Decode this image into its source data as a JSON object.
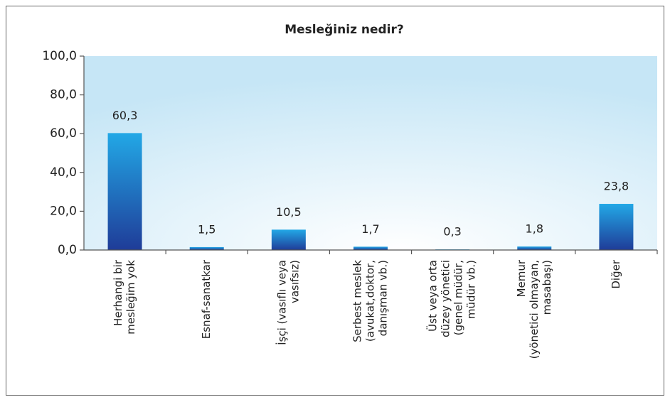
{
  "chart_data": {
    "type": "bar",
    "title": "Mesleğiniz nedir?",
    "categories": [
      [
        "Herhangi bir",
        "mesleğim yok"
      ],
      [
        "Esnaf-sanatkar"
      ],
      [
        "İşçi (vasıflı veya",
        "vasıfsız)"
      ],
      [
        "Serbest meslek",
        "(avukat,doktor,",
        "danışman vb.)"
      ],
      [
        "Üst veya orta",
        "düzey yönetici",
        "(genel müdür,",
        "müdür vb.)"
      ],
      [
        "Memur",
        "(yönetici olmayan,",
        "masabaşı)"
      ],
      [
        "Diğer"
      ]
    ],
    "values": [
      60.3,
      1.5,
      10.5,
      1.7,
      0.3,
      1.8,
      23.8
    ],
    "value_labels": [
      "60,3",
      "1,5",
      "10,5",
      "1,7",
      "0,3",
      "1,8",
      "23,8"
    ],
    "ylim": [
      0,
      100
    ],
    "yticks": [
      {
        "value": 0,
        "label": "0,0"
      },
      {
        "value": 20,
        "label": "20,0"
      },
      {
        "value": 40,
        "label": "40,0"
      },
      {
        "value": 60,
        "label": "60,0"
      },
      {
        "value": 80,
        "label": "80,0"
      },
      {
        "value": 100,
        "label": "100,0"
      }
    ],
    "colors": [
      "#22a8e6",
      "#1f3c98"
    ]
  }
}
